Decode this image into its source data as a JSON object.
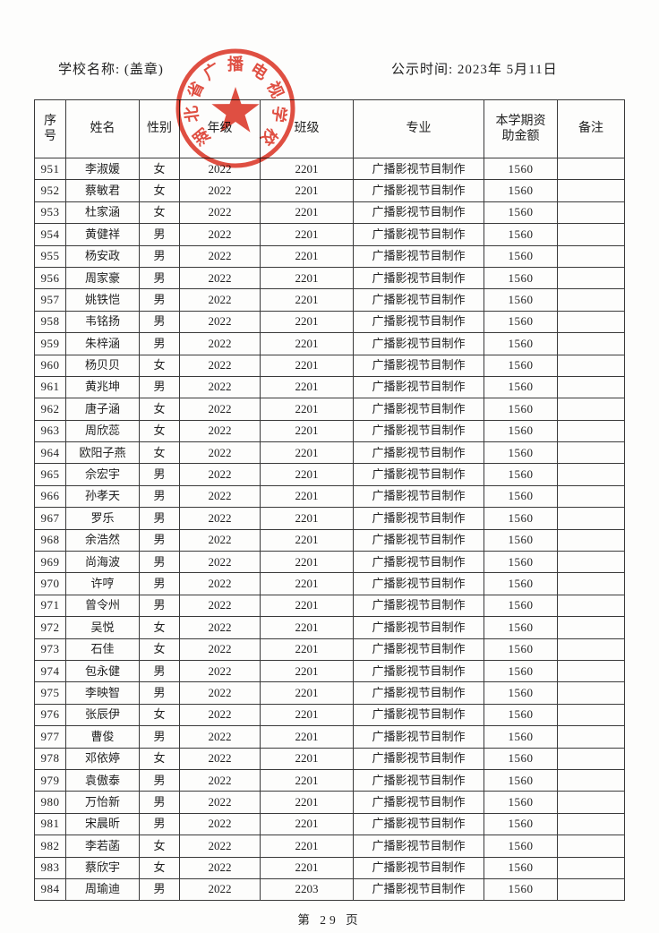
{
  "header": {
    "school_label": "学校名称: (盖章)",
    "publish_time": "公示时间: 2023年 5月11日"
  },
  "stamp": {
    "text": "湖北省广播电视学校",
    "color": "#dd3527",
    "icon": "star-icon"
  },
  "table": {
    "columns": [
      "序号",
      "姓名",
      "性别",
      "年级",
      "班级",
      "专业",
      "本学期资助金额",
      "备注"
    ],
    "rows": [
      {
        "no": "951",
        "name": "李淑媛",
        "gender": "女",
        "grade": "2022",
        "class": "2201",
        "major": "广播影视节目制作",
        "amount": "1560",
        "note": ""
      },
      {
        "no": "952",
        "name": "蔡敏君",
        "gender": "女",
        "grade": "2022",
        "class": "2201",
        "major": "广播影视节目制作",
        "amount": "1560",
        "note": ""
      },
      {
        "no": "953",
        "name": "杜家涵",
        "gender": "女",
        "grade": "2022",
        "class": "2201",
        "major": "广播影视节目制作",
        "amount": "1560",
        "note": ""
      },
      {
        "no": "954",
        "name": "黄健祥",
        "gender": "男",
        "grade": "2022",
        "class": "2201",
        "major": "广播影视节目制作",
        "amount": "1560",
        "note": ""
      },
      {
        "no": "955",
        "name": "杨安政",
        "gender": "男",
        "grade": "2022",
        "class": "2201",
        "major": "广播影视节目制作",
        "amount": "1560",
        "note": ""
      },
      {
        "no": "956",
        "name": "周家豪",
        "gender": "男",
        "grade": "2022",
        "class": "2201",
        "major": "广播影视节目制作",
        "amount": "1560",
        "note": ""
      },
      {
        "no": "957",
        "name": "姚铁恺",
        "gender": "男",
        "grade": "2022",
        "class": "2201",
        "major": "广播影视节目制作",
        "amount": "1560",
        "note": ""
      },
      {
        "no": "958",
        "name": "韦铭扬",
        "gender": "男",
        "grade": "2022",
        "class": "2201",
        "major": "广播影视节目制作",
        "amount": "1560",
        "note": ""
      },
      {
        "no": "959",
        "name": "朱梓涵",
        "gender": "男",
        "grade": "2022",
        "class": "2201",
        "major": "广播影视节目制作",
        "amount": "1560",
        "note": ""
      },
      {
        "no": "960",
        "name": "杨贝贝",
        "gender": "女",
        "grade": "2022",
        "class": "2201",
        "major": "广播影视节目制作",
        "amount": "1560",
        "note": ""
      },
      {
        "no": "961",
        "name": "黄兆坤",
        "gender": "男",
        "grade": "2022",
        "class": "2201",
        "major": "广播影视节目制作",
        "amount": "1560",
        "note": ""
      },
      {
        "no": "962",
        "name": "唐子涵",
        "gender": "女",
        "grade": "2022",
        "class": "2201",
        "major": "广播影视节目制作",
        "amount": "1560",
        "note": ""
      },
      {
        "no": "963",
        "name": "周欣蕊",
        "gender": "女",
        "grade": "2022",
        "class": "2201",
        "major": "广播影视节目制作",
        "amount": "1560",
        "note": ""
      },
      {
        "no": "964",
        "name": "欧阳子燕",
        "gender": "女",
        "grade": "2022",
        "class": "2201",
        "major": "广播影视节目制作",
        "amount": "1560",
        "note": ""
      },
      {
        "no": "965",
        "name": "佘宏宇",
        "gender": "男",
        "grade": "2022",
        "class": "2201",
        "major": "广播影视节目制作",
        "amount": "1560",
        "note": ""
      },
      {
        "no": "966",
        "name": "孙孝天",
        "gender": "男",
        "grade": "2022",
        "class": "2201",
        "major": "广播影视节目制作",
        "amount": "1560",
        "note": ""
      },
      {
        "no": "967",
        "name": "罗乐",
        "gender": "男",
        "grade": "2022",
        "class": "2201",
        "major": "广播影视节目制作",
        "amount": "1560",
        "note": ""
      },
      {
        "no": "968",
        "name": "余浩然",
        "gender": "男",
        "grade": "2022",
        "class": "2201",
        "major": "广播影视节目制作",
        "amount": "1560",
        "note": ""
      },
      {
        "no": "969",
        "name": "尚海波",
        "gender": "男",
        "grade": "2022",
        "class": "2201",
        "major": "广播影视节目制作",
        "amount": "1560",
        "note": ""
      },
      {
        "no": "970",
        "name": "许哼",
        "gender": "男",
        "grade": "2022",
        "class": "2201",
        "major": "广播影视节目制作",
        "amount": "1560",
        "note": ""
      },
      {
        "no": "971",
        "name": "曾令州",
        "gender": "男",
        "grade": "2022",
        "class": "2201",
        "major": "广播影视节目制作",
        "amount": "1560",
        "note": ""
      },
      {
        "no": "972",
        "name": "吴悦",
        "gender": "女",
        "grade": "2022",
        "class": "2201",
        "major": "广播影视节目制作",
        "amount": "1560",
        "note": ""
      },
      {
        "no": "973",
        "name": "石佳",
        "gender": "女",
        "grade": "2022",
        "class": "2201",
        "major": "广播影视节目制作",
        "amount": "1560",
        "note": ""
      },
      {
        "no": "974",
        "name": "包永健",
        "gender": "男",
        "grade": "2022",
        "class": "2201",
        "major": "广播影视节目制作",
        "amount": "1560",
        "note": ""
      },
      {
        "no": "975",
        "name": "李映智",
        "gender": "男",
        "grade": "2022",
        "class": "2201",
        "major": "广播影视节目制作",
        "amount": "1560",
        "note": ""
      },
      {
        "no": "976",
        "name": "张辰伊",
        "gender": "女",
        "grade": "2022",
        "class": "2201",
        "major": "广播影视节目制作",
        "amount": "1560",
        "note": ""
      },
      {
        "no": "977",
        "name": "曹俊",
        "gender": "男",
        "grade": "2022",
        "class": "2201",
        "major": "广播影视节目制作",
        "amount": "1560",
        "note": ""
      },
      {
        "no": "978",
        "name": "邓依婷",
        "gender": "女",
        "grade": "2022",
        "class": "2201",
        "major": "广播影视节目制作",
        "amount": "1560",
        "note": ""
      },
      {
        "no": "979",
        "name": "袁傲泰",
        "gender": "男",
        "grade": "2022",
        "class": "2201",
        "major": "广播影视节目制作",
        "amount": "1560",
        "note": ""
      },
      {
        "no": "980",
        "name": "万怡新",
        "gender": "男",
        "grade": "2022",
        "class": "2201",
        "major": "广播影视节目制作",
        "amount": "1560",
        "note": ""
      },
      {
        "no": "981",
        "name": "宋晨昕",
        "gender": "男",
        "grade": "2022",
        "class": "2201",
        "major": "广播影视节目制作",
        "amount": "1560",
        "note": ""
      },
      {
        "no": "982",
        "name": "李若菡",
        "gender": "女",
        "grade": "2022",
        "class": "2201",
        "major": "广播影视节目制作",
        "amount": "1560",
        "note": ""
      },
      {
        "no": "983",
        "name": "蔡欣宇",
        "gender": "女",
        "grade": "2022",
        "class": "2201",
        "major": "广播影视节目制作",
        "amount": "1560",
        "note": ""
      },
      {
        "no": "984",
        "name": "周瑜迪",
        "gender": "男",
        "grade": "2022",
        "class": "2203",
        "major": "广播影视节目制作",
        "amount": "1560",
        "note": ""
      }
    ]
  },
  "footer": {
    "page_label": "第 29 页"
  }
}
